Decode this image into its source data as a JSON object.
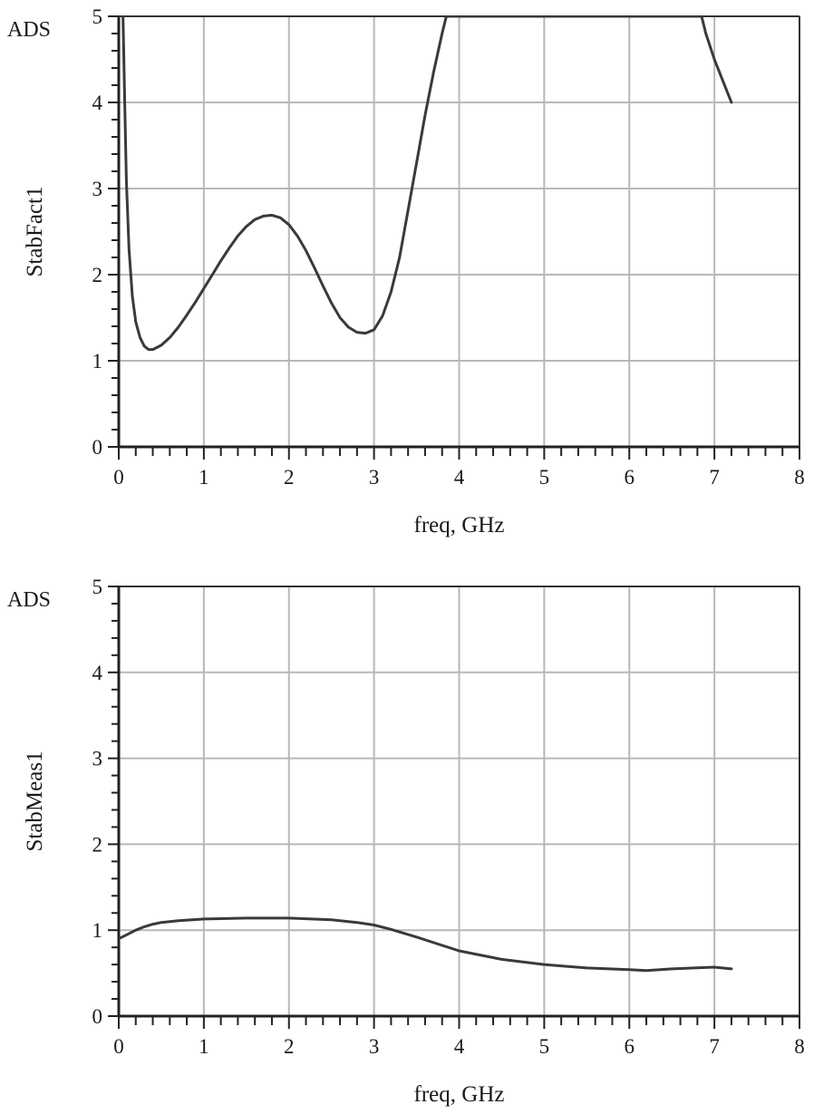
{
  "chart_data": [
    {
      "type": "line",
      "brand": "ADS",
      "xlabel": "freq, GHz",
      "ylabel": "StabFact1",
      "xlim": [
        0,
        8
      ],
      "ylim": [
        0,
        5
      ],
      "x_ticks": [
        "0",
        "1",
        "2",
        "3",
        "4",
        "5",
        "6",
        "7",
        "8"
      ],
      "y_ticks": [
        "0",
        "1",
        "2",
        "3",
        "4",
        "5"
      ],
      "grid": true,
      "line_color": "#3a3a3a",
      "grid_color": "#b8b8b8",
      "series": [
        {
          "x": [
            0.05,
            0.07,
            0.09,
            0.12,
            0.16,
            0.2,
            0.25,
            0.3,
            0.35,
            0.4,
            0.5,
            0.6,
            0.7,
            0.8,
            0.9,
            1.0,
            1.1,
            1.2,
            1.3,
            1.4,
            1.5,
            1.6,
            1.7,
            1.8,
            1.9,
            2.0,
            2.1,
            2.2,
            2.3,
            2.4,
            2.5,
            2.6,
            2.7,
            2.8,
            2.9,
            3.0,
            3.1,
            3.2,
            3.3,
            3.4,
            3.5,
            3.6,
            3.7,
            3.8,
            3.85,
            6.85,
            6.9,
            7.0,
            7.1,
            7.2
          ],
          "y": [
            5.0,
            4.0,
            3.1,
            2.3,
            1.75,
            1.45,
            1.27,
            1.17,
            1.13,
            1.13,
            1.18,
            1.27,
            1.39,
            1.53,
            1.68,
            1.84,
            2.0,
            2.16,
            2.31,
            2.45,
            2.56,
            2.64,
            2.68,
            2.69,
            2.66,
            2.58,
            2.45,
            2.28,
            2.08,
            1.87,
            1.67,
            1.5,
            1.39,
            1.33,
            1.32,
            1.36,
            1.52,
            1.8,
            2.2,
            2.75,
            3.3,
            3.85,
            4.35,
            4.8,
            5.0,
            5.0,
            4.8,
            4.5,
            4.25,
            4.0
          ]
        }
      ]
    },
    {
      "type": "line",
      "brand": "ADS",
      "xlabel": "freq, GHz",
      "ylabel": "StabMeas1",
      "xlim": [
        0,
        8
      ],
      "ylim": [
        0,
        5
      ],
      "x_ticks": [
        "0",
        "1",
        "2",
        "3",
        "4",
        "5",
        "6",
        "7",
        "8"
      ],
      "y_ticks": [
        "0",
        "1",
        "2",
        "3",
        "4",
        "5"
      ],
      "grid": true,
      "line_color": "#3a3a3a",
      "grid_color": "#b8b8b8",
      "series": [
        {
          "x": [
            0.0,
            0.1,
            0.2,
            0.3,
            0.4,
            0.5,
            0.7,
            1.0,
            1.5,
            2.0,
            2.5,
            2.8,
            3.0,
            3.2,
            3.5,
            4.0,
            4.5,
            5.0,
            5.5,
            6.0,
            6.2,
            6.5,
            7.0,
            7.2
          ],
          "y": [
            0.9,
            0.95,
            1.0,
            1.04,
            1.07,
            1.09,
            1.11,
            1.13,
            1.14,
            1.14,
            1.12,
            1.09,
            1.06,
            1.01,
            0.92,
            0.76,
            0.66,
            0.6,
            0.56,
            0.54,
            0.53,
            0.55,
            0.57,
            0.55
          ]
        }
      ]
    }
  ]
}
